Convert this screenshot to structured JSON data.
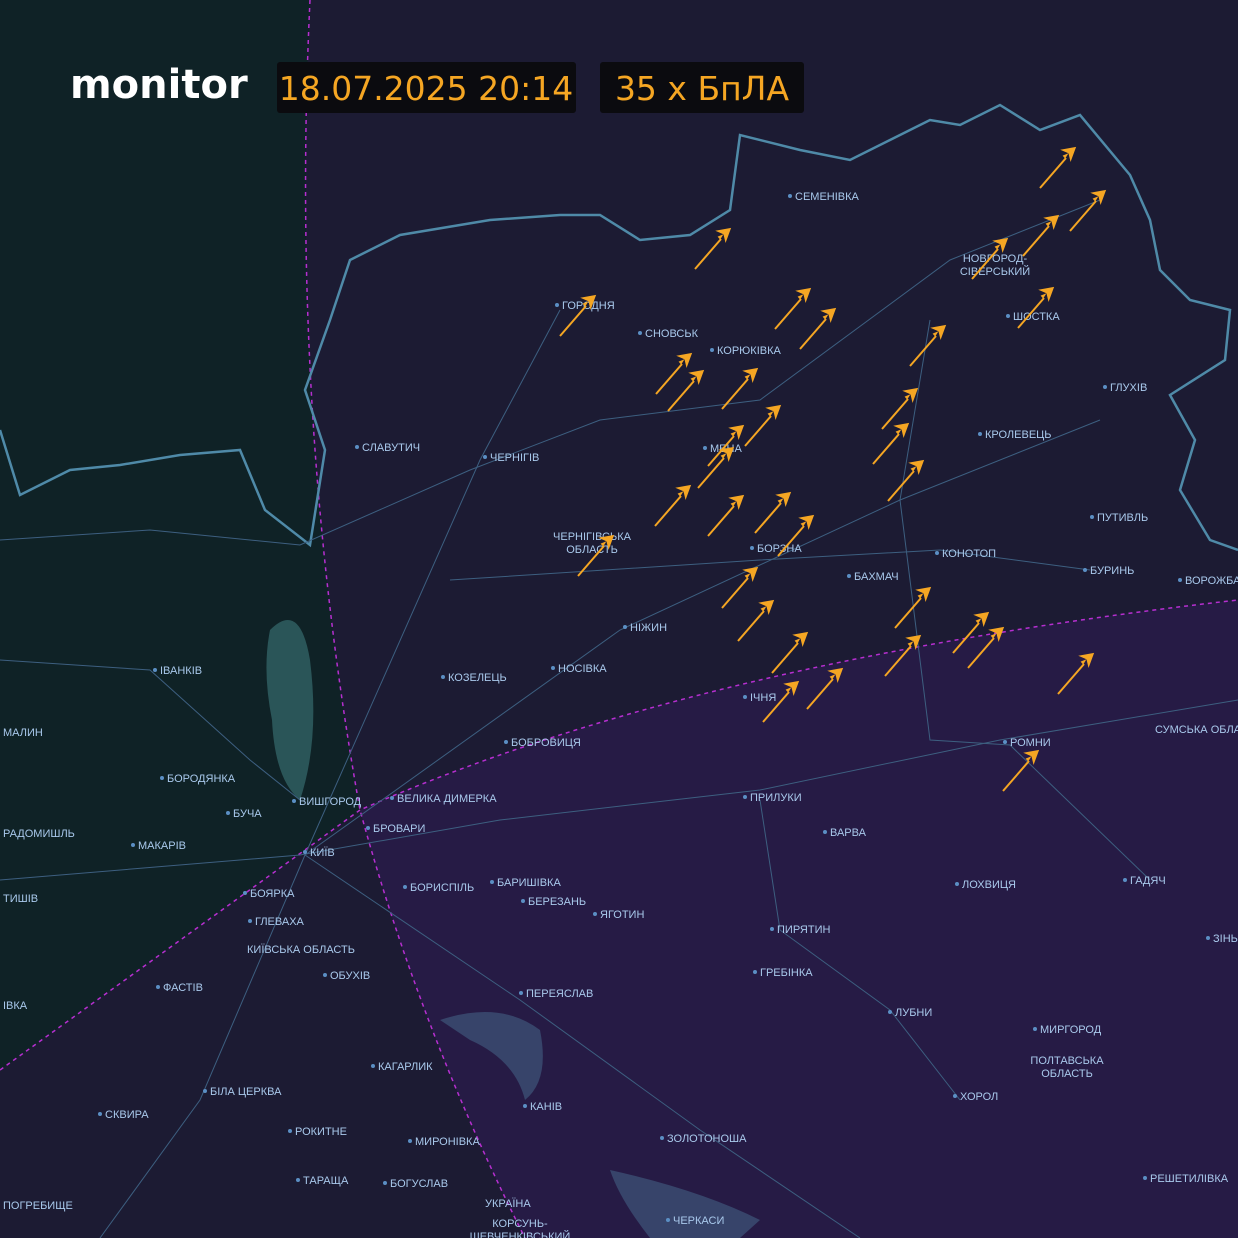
{
  "header": {
    "brand": "monitor",
    "timestamp": "18.07.2025 20:14",
    "count": "35 x БпЛА"
  },
  "places": [
    {
      "name": "СЕМЕНІВКА"
    },
    {
      "lines": [
        "НОВГОРОД-",
        "СІВЕРСЬКИЙ"
      ]
    },
    {
      "name": "ГОРОДНЯ"
    },
    {
      "name": "СНОВСЬК"
    },
    {
      "name": "КОРЮКІВКА"
    },
    {
      "name": "ШОСТКА"
    },
    {
      "name": "ГЛУХІВ"
    },
    {
      "name": "СЛАВУТИЧ"
    },
    {
      "name": "ЧЕРНІГІВ"
    },
    {
      "name": "МЕНА"
    },
    {
      "name": "КРОЛЕВЕЦЬ"
    },
    {
      "lines": [
        "ЧЕРНІГІВСЬКА",
        "ОБЛАСТЬ"
      ]
    },
    {
      "name": "ПУТИВЛЬ"
    },
    {
      "name": "БОРЗНА"
    },
    {
      "name": "КОНОТОП"
    },
    {
      "name": "БАХМАЧ"
    },
    {
      "name": "БУРИНЬ"
    },
    {
      "name": "ВОРОЖБА"
    },
    {
      "name": "НІЖИН"
    },
    {
      "name": "ІВАНКІВ"
    },
    {
      "name": "НОСІВКА"
    },
    {
      "name": "КОЗЕЛЕЦЬ"
    },
    {
      "name": "ІЧНЯ"
    },
    {
      "name": "МАЛИН"
    },
    {
      "name": "СУМСЬКА ОБЛАСТЬ"
    },
    {
      "name": "БОБРОВИЦЯ"
    },
    {
      "name": "РОМНИ"
    },
    {
      "name": "БОРОДЯНКА"
    },
    {
      "name": "ВИШГОРОД"
    },
    {
      "name": "ВЕЛИКА ДИМЕРКА"
    },
    {
      "name": "ПРИЛУКИ"
    },
    {
      "name": "БУЧА"
    },
    {
      "name": "БРОВАРИ"
    },
    {
      "name": "РАДОМИШЛЬ"
    },
    {
      "name": "МАКАРІВ"
    },
    {
      "name": "КИЇВ"
    },
    {
      "name": "ВАРВА"
    },
    {
      "name": "ЛОХВИЦЯ"
    },
    {
      "name": "БОРИСПІЛЬ"
    },
    {
      "name": "БАРИШІВКА"
    },
    {
      "name": "ГАДЯЧ"
    },
    {
      "name": "БОЯРКА"
    },
    {
      "name": "ТИШІВ"
    },
    {
      "name": "ІВКА"
    },
    {
      "name": "БЕРЕЗАНЬ"
    },
    {
      "name": "ГЛЕВАХА"
    },
    {
      "name": "ЯГОТИН"
    },
    {
      "name": "ПИРЯТИН"
    },
    {
      "name": "ЗІНЬКІВ"
    },
    {
      "name": "КИЇВСЬКА ОБЛАСТЬ"
    },
    {
      "name": "ГРЕБІНКА"
    },
    {
      "name": "ОБУХІВ"
    },
    {
      "name": "ФАСТІВ"
    },
    {
      "name": "ПЕРЕЯСЛАВ"
    },
    {
      "name": "ЛУБНИ"
    },
    {
      "name": "МИРГОРОД"
    },
    {
      "lines": [
        "ПОЛТАВСЬКА",
        "ОБЛАСТЬ"
      ]
    },
    {
      "name": "КАГАРЛИК"
    },
    {
      "name": "БІЛА ЦЕРКВА"
    },
    {
      "name": "ХОРОЛ"
    },
    {
      "name": "КАНІВ"
    },
    {
      "name": "СКВИРА"
    },
    {
      "name": "РОКИТНЕ"
    },
    {
      "name": "ЗОЛОТОНОША"
    },
    {
      "name": "МИРОНІВКА"
    },
    {
      "name": "ТАРАЩА"
    },
    {
      "name": "БОГУСЛАВ"
    },
    {
      "name": "РЕШЕТИЛІВКА"
    },
    {
      "name": "ПОГРЕБИЩЕ"
    },
    {
      "name": "УКРАЇНА"
    },
    {
      "name": "ЧЕРКАСИ"
    },
    {
      "lines": [
        "КОРСУНЬ-",
        "ШЕВЧЕНКІВСЬКИЙ"
      ]
    }
  ]
}
